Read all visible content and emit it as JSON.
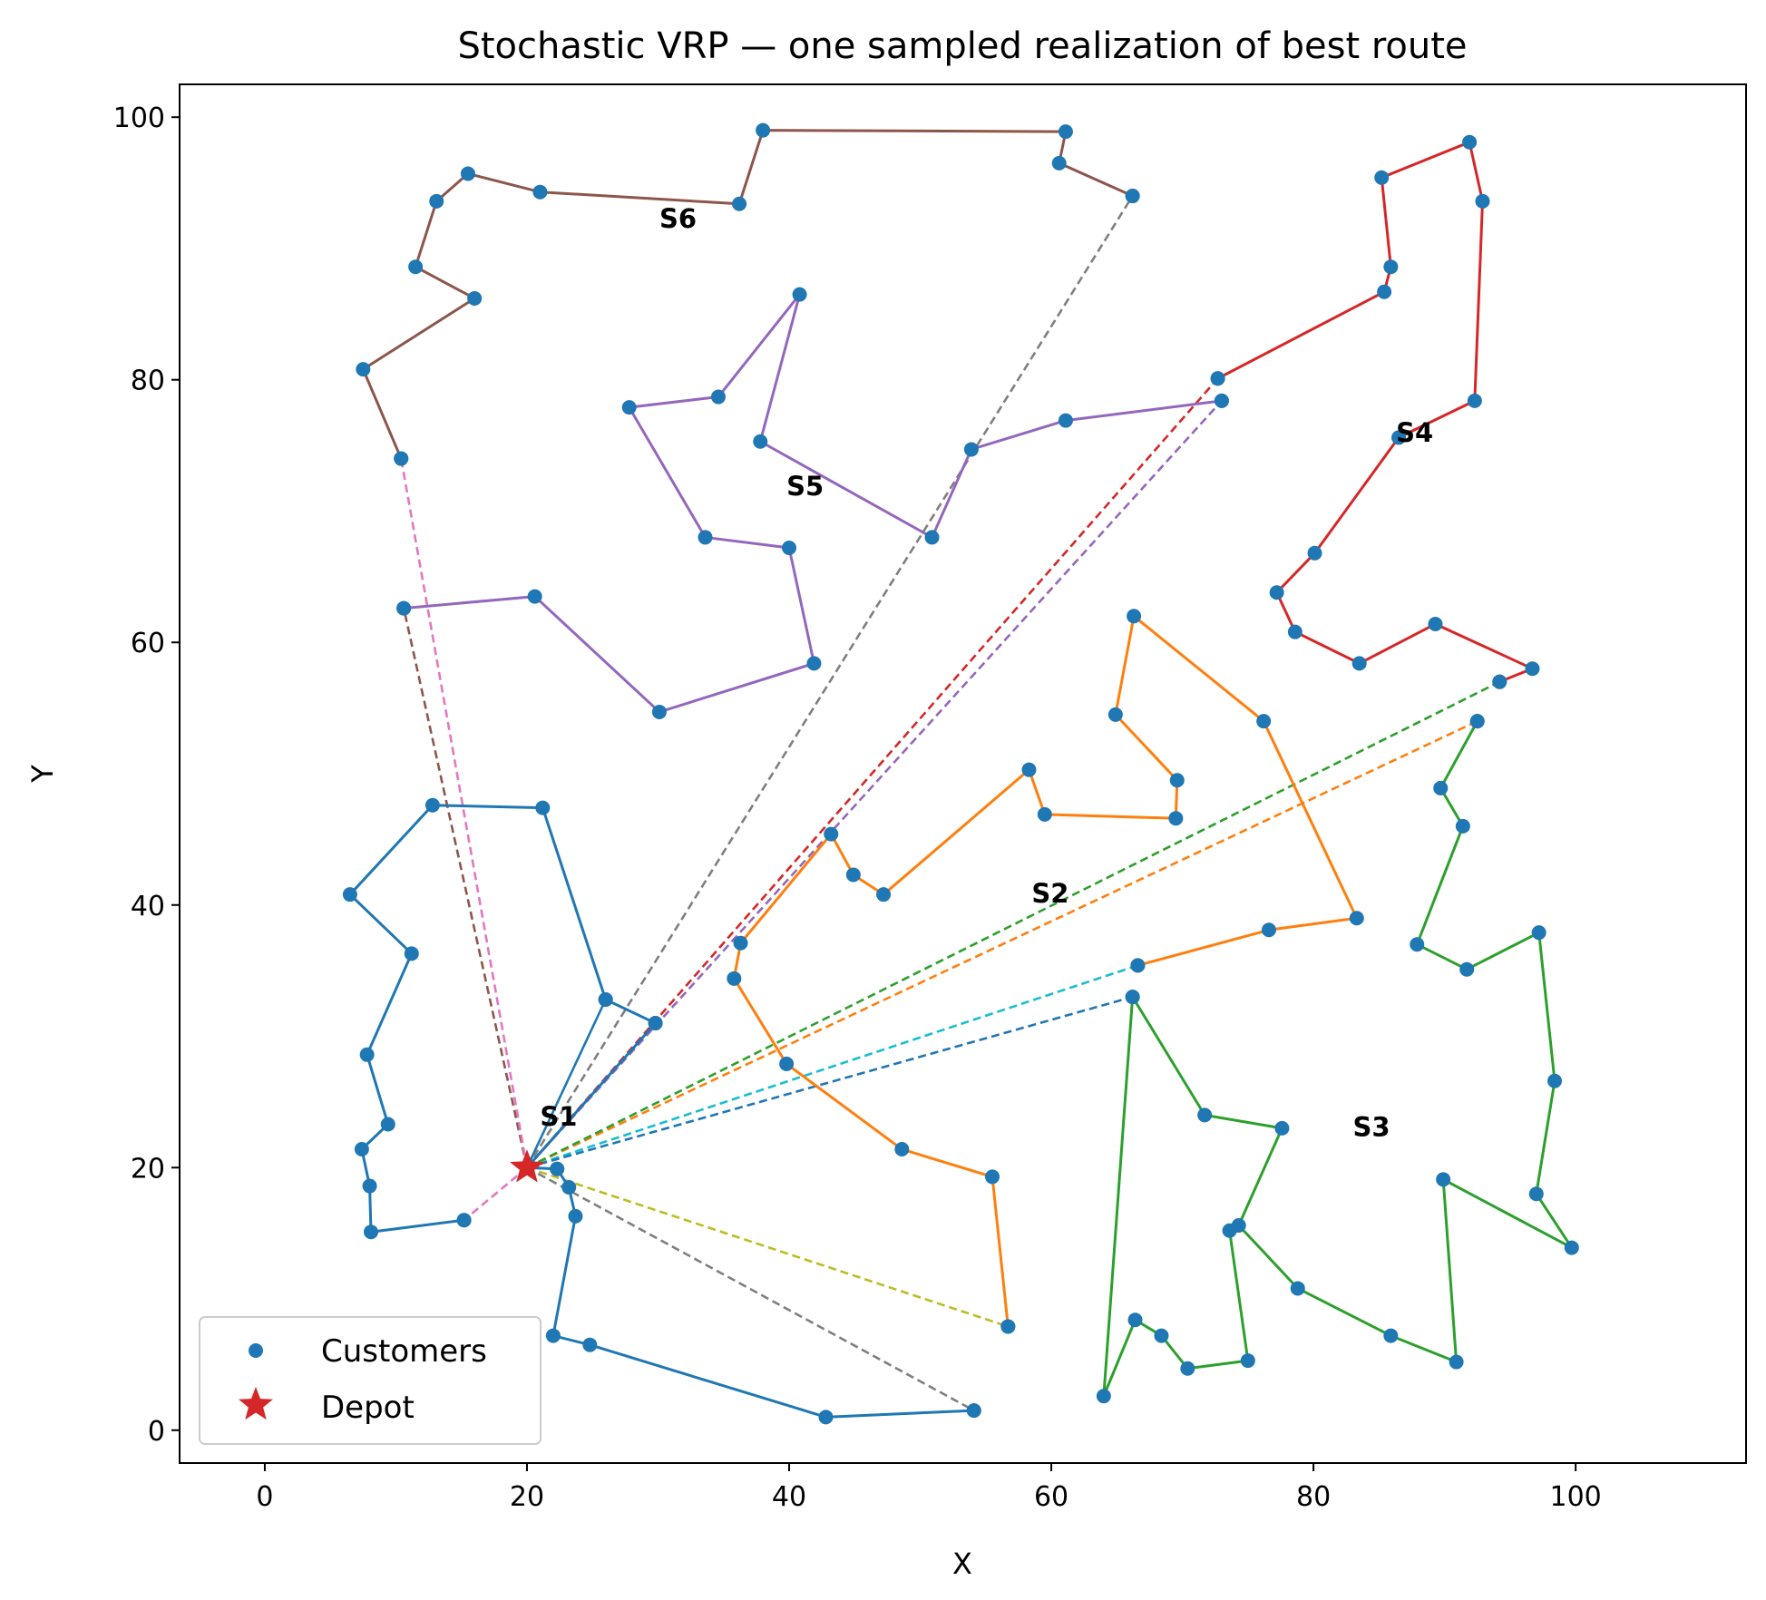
{
  "chart_data": {
    "type": "scatter",
    "title": "Stochastic VRP — one sampled realization of best route",
    "xlabel": "X",
    "ylabel": "Y",
    "xlim": [
      -6.5,
      113
    ],
    "ylim": [
      -2.5,
      102.5
    ],
    "xticks": [
      0,
      20,
      40,
      60,
      80,
      100
    ],
    "yticks": [
      0,
      20,
      40,
      60,
      80,
      100
    ],
    "grid": false,
    "legend": {
      "placement": "lower-left",
      "entries": [
        {
          "label": "Customers",
          "marker": "circle",
          "color": "#1f77b4"
        },
        {
          "label": "Depot",
          "marker": "star",
          "color": "#d62728"
        }
      ]
    },
    "depot": {
      "x": 20,
      "y": 20
    },
    "routes": [
      {
        "name": "S1",
        "label_at": [
          21,
          23.2
        ],
        "color": "#1f77b4",
        "points": [
          [
            26,
            32.8
          ],
          [
            21.2,
            47.4
          ],
          [
            12.8,
            47.6
          ],
          [
            6.5,
            40.8
          ],
          [
            11.2,
            36.3
          ],
          [
            7.8,
            28.6
          ],
          [
            9.4,
            23.3
          ],
          [
            7.4,
            21.4
          ],
          [
            8.0,
            18.6
          ],
          [
            8.1,
            15.1
          ],
          [
            15.2,
            16.0
          ]
        ]
      },
      {
        "name": "S2",
        "label_at": [
          58.5,
          40.2
        ],
        "color": "#ff7f0e",
        "points": [
          [
            66.6,
            35.4
          ],
          [
            76.6,
            38.1
          ],
          [
            83.3,
            39.0
          ],
          [
            76.2,
            54.0
          ],
          [
            66.3,
            62.0
          ],
          [
            64.9,
            54.5
          ],
          [
            69.6,
            49.5
          ],
          [
            69.5,
            46.6
          ],
          [
            59.5,
            46.9
          ],
          [
            58.3,
            50.3
          ],
          [
            47.2,
            40.8
          ],
          [
            44.9,
            42.3
          ],
          [
            43.2,
            45.4
          ],
          [
            36.3,
            37.1
          ],
          [
            35.8,
            34.4
          ],
          [
            39.8,
            27.9
          ],
          [
            48.6,
            21.4
          ],
          [
            55.5,
            19.3
          ],
          [
            56.7,
            7.9
          ]
        ]
      },
      {
        "name": "S3",
        "label_at": [
          83,
          22.4
        ],
        "color": "#2ca02c",
        "points": [
          [
            92.5,
            54.0
          ],
          [
            89.7,
            48.9
          ],
          [
            91.4,
            46.0
          ],
          [
            87.9,
            37.0
          ],
          [
            91.7,
            35.1
          ],
          [
            97.2,
            37.9
          ],
          [
            98.4,
            26.6
          ],
          [
            97.0,
            18.0
          ],
          [
            99.7,
            13.9
          ],
          [
            89.9,
            19.1
          ],
          [
            90.9,
            5.2
          ],
          [
            85.9,
            7.2
          ],
          [
            78.8,
            10.8
          ],
          [
            74.3,
            15.6
          ],
          [
            77.6,
            23.0
          ],
          [
            71.7,
            24.0
          ],
          [
            66.2,
            33.0
          ],
          [
            64,
            2.6
          ],
          [
            66.4,
            8.4
          ],
          [
            68.4,
            7.2
          ],
          [
            70.4,
            4.7
          ],
          [
            75,
            5.3
          ],
          [
            73.6,
            15.2
          ]
        ]
      },
      {
        "name": "S4",
        "label_at": [
          86.3,
          75.3
        ],
        "color": "#d62728",
        "points": [
          [
            94.2,
            57.0
          ],
          [
            96.7,
            58.0
          ],
          [
            89.3,
            61.4
          ],
          [
            83.5,
            58.4
          ],
          [
            78.6,
            60.8
          ],
          [
            77.2,
            63.8
          ],
          [
            80.1,
            66.8
          ],
          [
            86.5,
            75.6
          ],
          [
            92.3,
            78.4
          ],
          [
            92.9,
            93.6
          ],
          [
            91.9,
            98.1
          ],
          [
            85.2,
            95.4
          ],
          [
            85.9,
            88.6
          ],
          [
            85.4,
            86.7
          ],
          [
            72.7,
            80.1
          ]
        ]
      },
      {
        "name": "S5",
        "label_at": [
          39.8,
          71.2
        ],
        "color": "#9467bd",
        "points": [
          [
            73,
            78.4
          ],
          [
            61.1,
            76.9
          ],
          [
            53.9,
            74.7
          ],
          [
            50.9,
            68.0
          ],
          [
            37.8,
            75.3
          ],
          [
            40.8,
            86.5
          ],
          [
            34.6,
            78.7
          ],
          [
            27.8,
            77.9
          ],
          [
            33.6,
            68.0
          ],
          [
            40,
            67.2
          ],
          [
            41.9,
            58.4
          ],
          [
            30.1,
            54.7
          ],
          [
            20.6,
            63.5
          ],
          [
            10.6,
            62.6
          ]
        ]
      },
      {
        "name": "S6",
        "label_at": [
          30.1,
          91.6
        ],
        "color": "#8c564b",
        "points": [
          [
            66.2,
            94.0
          ],
          [
            60.6,
            96.5
          ],
          [
            61.1,
            98.9
          ],
          [
            38,
            99.0
          ],
          [
            36.2,
            93.4
          ],
          [
            21,
            94.3
          ],
          [
            15.5,
            95.7
          ],
          [
            13.1,
            93.6
          ],
          [
            11.5,
            88.6
          ],
          [
            16.0,
            86.2
          ],
          [
            7.5,
            80.8
          ],
          [
            10.4,
            74.0
          ]
        ]
      }
    ],
    "depot_connections": [
      {
        "to": [
          26,
          32.8
        ],
        "color": "#1f77b4",
        "style": "solid"
      },
      {
        "to": [
          29.8,
          31.0
        ],
        "color": "#1f77b4",
        "style": "solid"
      },
      {
        "to": [
          22.3,
          19.9
        ],
        "color": "#1f77b4",
        "style": "solid"
      },
      {
        "to": [
          15.2,
          16.0
        ],
        "color": "#e377c2",
        "style": "dashed"
      },
      {
        "to": [
          66.6,
          35.4
        ],
        "color": "#17becf",
        "style": "dashed"
      },
      {
        "to": [
          56.7,
          7.9
        ],
        "color": "#bcbd22",
        "style": "dashed"
      },
      {
        "to": [
          92.5,
          54.0
        ],
        "color": "#ff7f0e",
        "style": "dashed"
      },
      {
        "to": [
          94.2,
          57.0
        ],
        "color": "#2ca02c",
        "style": "dashed"
      },
      {
        "to": [
          66.2,
          33.0
        ],
        "color": "#1f77b4",
        "style": "dashed"
      },
      {
        "to": [
          72.7,
          80.1
        ],
        "color": "#d62728",
        "style": "dashed"
      },
      {
        "to": [
          73,
          78.4
        ],
        "color": "#9467bd",
        "style": "dashed"
      },
      {
        "to": [
          66.2,
          94.0
        ],
        "color": "#7f7f7f",
        "style": "dashed"
      },
      {
        "to": [
          10.6,
          62.6
        ],
        "color": "#8c564b",
        "style": "dashed"
      },
      {
        "to": [
          10.4,
          74.0
        ],
        "color": "#e377c2",
        "style": "dashed"
      },
      {
        "to": [
          54.1,
          1.5
        ],
        "color": "#7f7f7f",
        "style": "dashed"
      }
    ],
    "extra_route_segments": [
      {
        "color": "#1f77b4",
        "points": [
          [
            20,
            20
          ],
          [
            22.3,
            19.9
          ],
          [
            23.2,
            18.5
          ],
          [
            23.7,
            16.3
          ],
          [
            22.0,
            7.2
          ],
          [
            24.8,
            6.5
          ],
          [
            42.8,
            1.0
          ],
          [
            54.1,
            1.5
          ]
        ]
      },
      {
        "color": "#1f77b4",
        "points": [
          [
            26,
            32.8
          ],
          [
            29.8,
            31.0
          ],
          [
            20,
            20
          ]
        ]
      }
    ]
  }
}
